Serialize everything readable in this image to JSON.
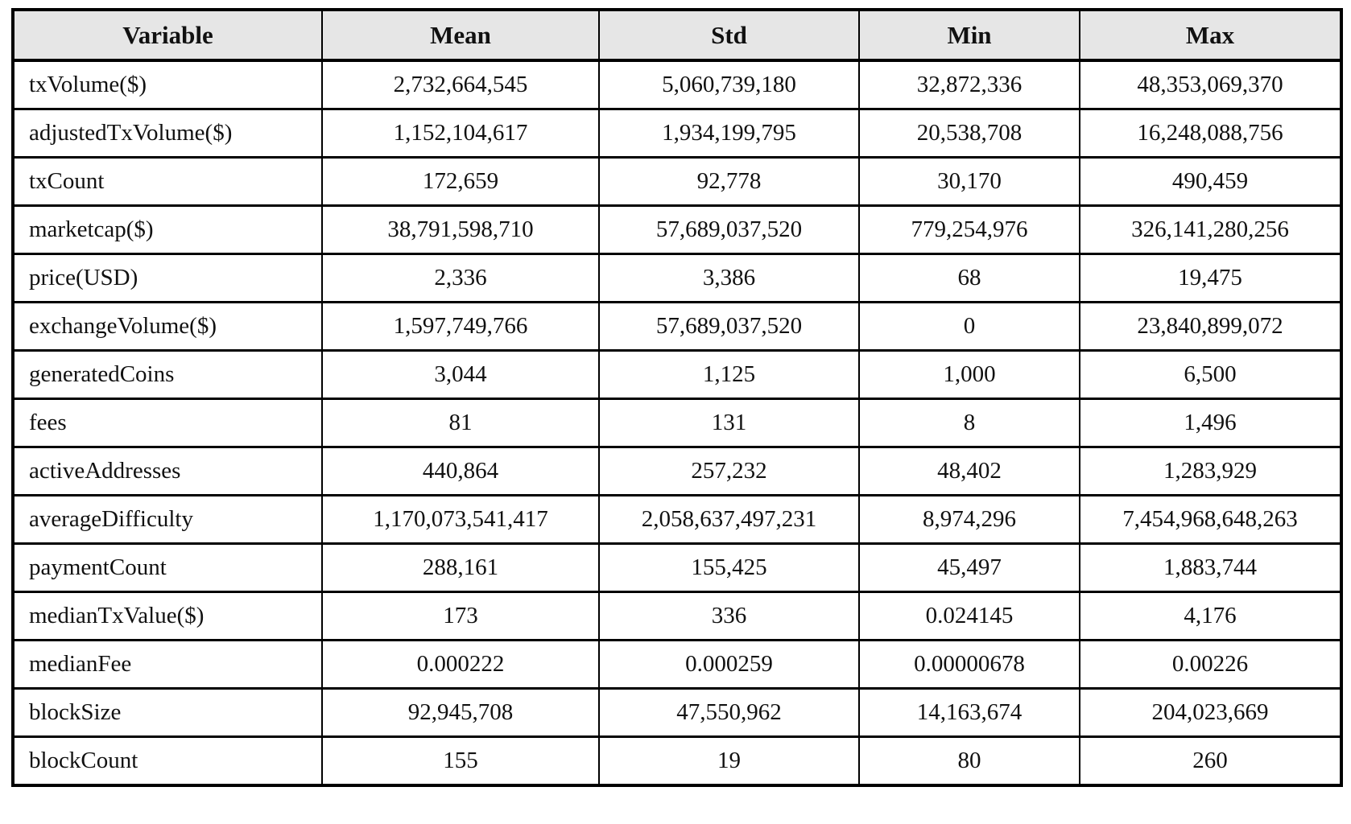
{
  "colors": {
    "header_bg": "#e6e6e6",
    "border": "#000000",
    "text": "#111111"
  },
  "chart_data": {
    "type": "table",
    "title": "",
    "columns": [
      "Variable",
      "Mean",
      "Std",
      "Min",
      "Max"
    ],
    "rows": [
      [
        "txVolume($)",
        "2,732,664,545",
        "5,060,739,180",
        "32,872,336",
        "48,353,069,370"
      ],
      [
        "adjustedTxVolume($)",
        "1,152,104,617",
        "1,934,199,795",
        "20,538,708",
        "16,248,088,756"
      ],
      [
        "txCount",
        "172,659",
        "92,778",
        "30,170",
        "490,459"
      ],
      [
        "marketcap($)",
        "38,791,598,710",
        "57,689,037,520",
        "779,254,976",
        "326,141,280,256"
      ],
      [
        "price(USD)",
        "2,336",
        "3,386",
        "68",
        "19,475"
      ],
      [
        "exchangeVolume($)",
        "1,597,749,766",
        "57,689,037,520",
        "0",
        "23,840,899,072"
      ],
      [
        "generatedCoins",
        "3,044",
        "1,125",
        "1,000",
        "6,500"
      ],
      [
        "fees",
        "81",
        "131",
        "8",
        "1,496"
      ],
      [
        "activeAddresses",
        "440,864",
        "257,232",
        "48,402",
        "1,283,929"
      ],
      [
        "averageDifficulty",
        "1,170,073,541,417",
        "2,058,637,497,231",
        "8,974,296",
        "7,454,968,648,263"
      ],
      [
        "paymentCount",
        "288,161",
        "155,425",
        "45,497",
        "1,883,744"
      ],
      [
        "medianTxValue($)",
        "173",
        "336",
        "0.024145",
        "4,176"
      ],
      [
        "medianFee",
        "0.000222",
        "0.000259",
        "0.00000678",
        "0.00226"
      ],
      [
        "blockSize",
        "92,945,708",
        "47,550,962",
        "14,163,674",
        "204,023,669"
      ],
      [
        "blockCount",
        "155",
        "19",
        "80",
        "260"
      ]
    ]
  }
}
